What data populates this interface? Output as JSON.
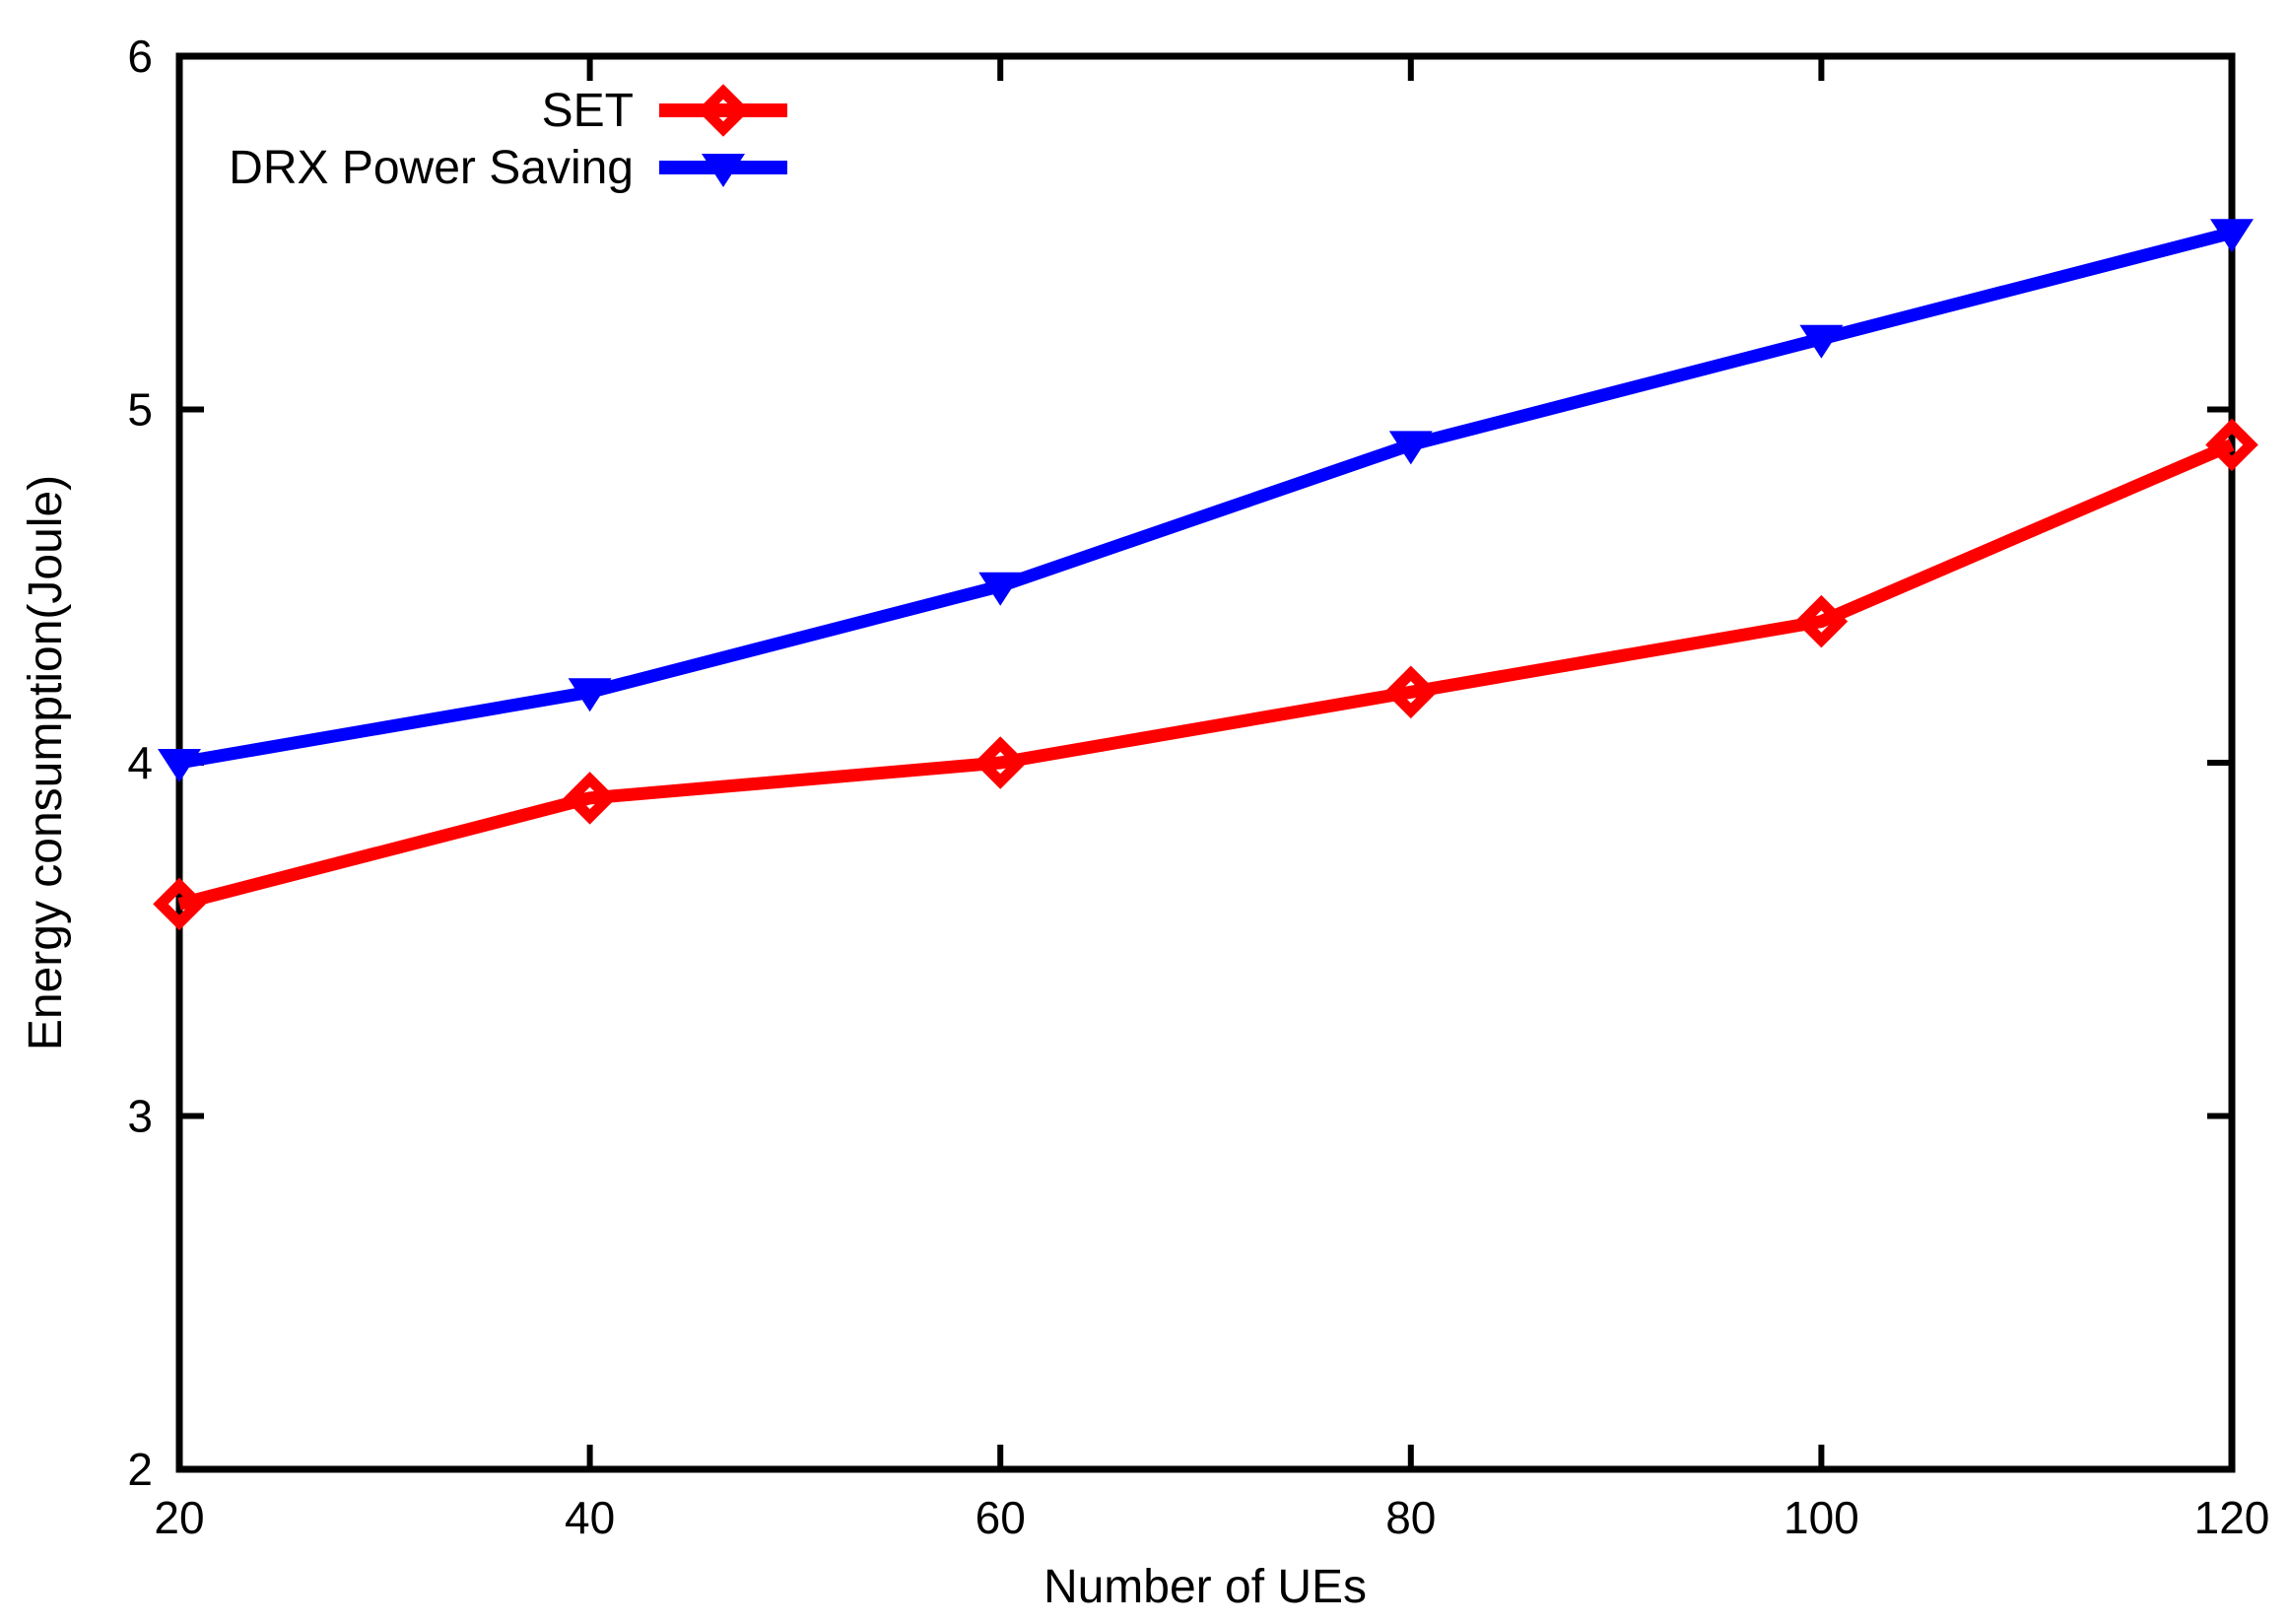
{
  "figure": {
    "background": "#ffffff",
    "frame_color": "#000000"
  },
  "chart_data": {
    "type": "line",
    "title": "",
    "xlabel": "Number of UEs",
    "ylabel": "Energy consumption(Joule)",
    "x": [
      20,
      40,
      60,
      80,
      100,
      120
    ],
    "xlim": [
      20,
      120
    ],
    "ylim": [
      2,
      6
    ],
    "xticks": [
      20,
      40,
      60,
      80,
      100,
      120
    ],
    "yticks": [
      2,
      3,
      4,
      5,
      6
    ],
    "grid": false,
    "tick_style": "inward-mirrored",
    "legend_position": "top-left-inside",
    "series": [
      {
        "name": "SET",
        "color": "#ff0000",
        "marker": "open-diamond",
        "values": [
          3.6,
          3.9,
          4.0,
          4.2,
          4.4,
          4.9
        ]
      },
      {
        "name": "DRX Power Saving",
        "color": "#0000ff",
        "marker": "filled-triangle-down",
        "values": [
          4.0,
          4.2,
          4.5,
          4.9,
          5.2,
          5.5
        ]
      }
    ]
  }
}
